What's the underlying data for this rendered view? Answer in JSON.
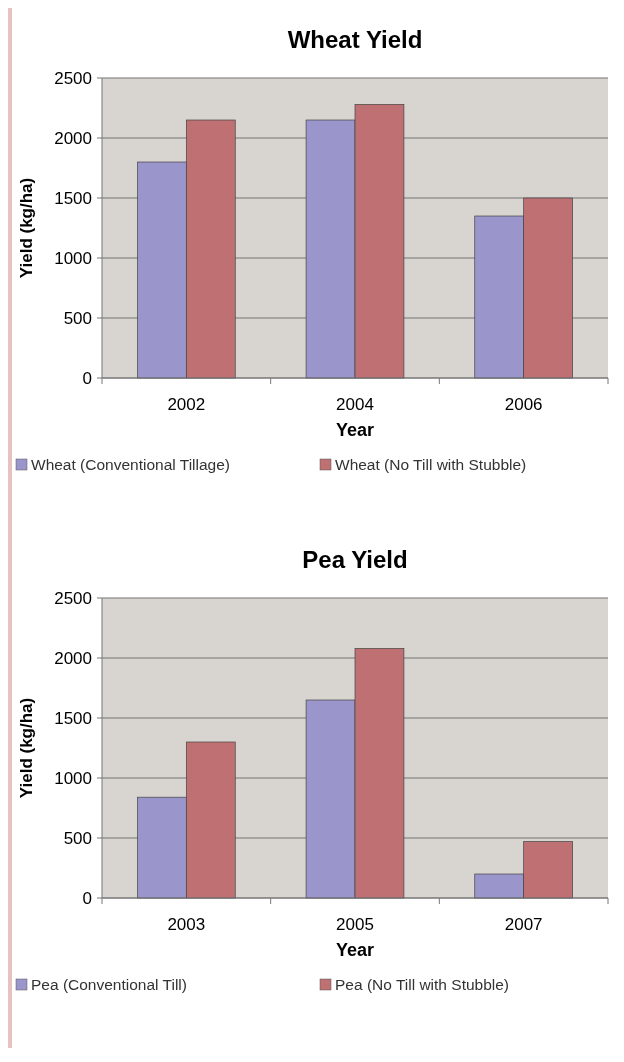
{
  "chart_data": [
    {
      "type": "bar",
      "title": "Wheat Yield",
      "xlabel": "Year",
      "ylabel": "Yield (kg/ha)",
      "categories": [
        "2002",
        "2004",
        "2006"
      ],
      "series": [
        {
          "name": "Wheat (Conventional Tillage)",
          "color": "#9a96cc",
          "values": [
            1800,
            2150,
            1350
          ]
        },
        {
          "name": "Wheat (No Till with Stubble)",
          "color": "#bf7073",
          "values": [
            2150,
            2280,
            1500
          ]
        }
      ],
      "ylim": [
        0,
        2500
      ],
      "yticks": [
        0,
        500,
        1000,
        1500,
        2000,
        2500
      ],
      "grid": "y",
      "legend": "bottom"
    },
    {
      "type": "bar",
      "title": "Pea Yield",
      "xlabel": "Year",
      "ylabel": "Yield (kg/ha)",
      "categories": [
        "2003",
        "2005",
        "2007"
      ],
      "series": [
        {
          "name": "Pea (Conventional Till)",
          "color": "#9a96cc",
          "values": [
            840,
            1650,
            200
          ]
        },
        {
          "name": "Pea (No Till with Stubble)",
          "color": "#bf7073",
          "values": [
            1300,
            2080,
            470
          ]
        }
      ],
      "ylim": [
        0,
        2500
      ],
      "yticks": [
        0,
        500,
        1000,
        1500,
        2000,
        2500
      ],
      "grid": "y",
      "legend": "bottom"
    }
  ]
}
